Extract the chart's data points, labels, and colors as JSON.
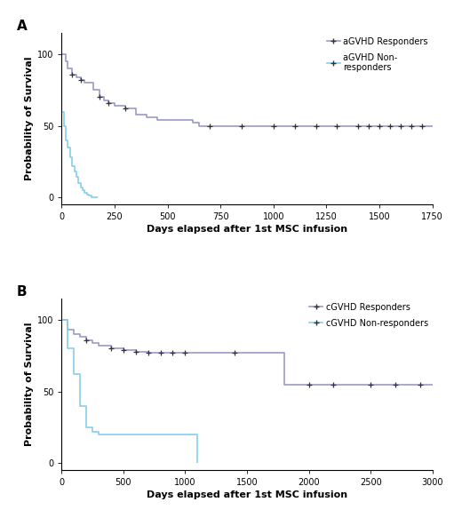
{
  "panel_A": {
    "title_label": "A",
    "xlabel": "Days elapsed after 1st MSC infusion",
    "ylabel": "Probability of Survival",
    "xlim": [
      0,
      1750
    ],
    "ylim": [
      -5,
      115
    ],
    "xticks": [
      0,
      250,
      500,
      750,
      1000,
      1250,
      1500,
      1750
    ],
    "yticks": [
      0,
      50,
      100
    ],
    "responders": {
      "x": [
        0,
        20,
        30,
        50,
        70,
        90,
        110,
        150,
        180,
        200,
        220,
        250,
        300,
        350,
        400,
        450,
        620,
        650,
        700,
        750,
        800,
        900,
        1000,
        1050,
        1100,
        1150,
        1200,
        1250,
        1300,
        1350,
        1400,
        1450,
        1500,
        1550,
        1600,
        1650,
        1700,
        1750
      ],
      "y": [
        100,
        95,
        90,
        86,
        84,
        82,
        80,
        75,
        70,
        68,
        66,
        64,
        62,
        58,
        56,
        54,
        52,
        50,
        50,
        50,
        50,
        50,
        50,
        50,
        50,
        50,
        50,
        50,
        50,
        50,
        50,
        50,
        50,
        50,
        50,
        50,
        50,
        50
      ],
      "censors_x": [
        50,
        90,
        180,
        220,
        300,
        700,
        850,
        1000,
        1100,
        1200,
        1300,
        1400,
        1450,
        1500,
        1550,
        1600,
        1650,
        1700
      ],
      "censors_y": [
        86,
        82,
        70,
        66,
        62,
        50,
        50,
        50,
        50,
        50,
        50,
        50,
        50,
        50,
        50,
        50,
        50,
        50
      ],
      "color": "#9b9bc8",
      "label": "aGVHD Responders"
    },
    "nonresponders": {
      "x": [
        0,
        10,
        20,
        30,
        40,
        50,
        60,
        70,
        80,
        90,
        100,
        110,
        120,
        130,
        140,
        150,
        160,
        170
      ],
      "y": [
        60,
        50,
        40,
        35,
        28,
        22,
        18,
        14,
        10,
        7,
        5,
        3,
        2,
        1,
        0,
        0,
        0,
        0
      ],
      "censors_x": [],
      "censors_y": [],
      "color": "#87CEEB",
      "label": "aGVHD Non-\nresponders"
    }
  },
  "panel_B": {
    "title_label": "B",
    "xlabel": "Days elapsed after 1st MSC infusion",
    "ylabel": "Probability of Survival",
    "xlim": [
      0,
      3000
    ],
    "ylim": [
      -5,
      115
    ],
    "xticks": [
      0,
      500,
      1000,
      1500,
      2000,
      2500,
      3000
    ],
    "yticks": [
      0,
      50,
      100
    ],
    "responders": {
      "x": [
        0,
        50,
        100,
        150,
        200,
        250,
        300,
        400,
        500,
        600,
        700,
        800,
        900,
        1000,
        1200,
        1400,
        1700,
        1800,
        1900,
        2000,
        2100,
        2200,
        2300,
        2400,
        2500,
        2600,
        2700,
        2800,
        2900,
        3000
      ],
      "y": [
        100,
        93,
        90,
        88,
        86,
        84,
        82,
        80,
        79,
        78,
        77,
        77,
        77,
        77,
        77,
        77,
        77,
        55,
        55,
        55,
        55,
        55,
        55,
        55,
        55,
        55,
        55,
        55,
        55,
        55
      ],
      "censors_x": [
        200,
        400,
        500,
        600,
        700,
        800,
        900,
        1000,
        1400,
        2000,
        2200,
        2500,
        2700,
        2900
      ],
      "censors_y": [
        86,
        80,
        79,
        78,
        77,
        77,
        77,
        77,
        77,
        55,
        55,
        55,
        55,
        55
      ],
      "color": "#9b9bc8",
      "label": "cGVHD Responders"
    },
    "nonresponders": {
      "x": [
        0,
        50,
        100,
        150,
        200,
        250,
        300,
        400,
        500,
        600,
        700,
        800,
        900,
        1000,
        1100
      ],
      "y": [
        100,
        80,
        62,
        40,
        25,
        22,
        20,
        20,
        20,
        20,
        20,
        20,
        20,
        20,
        0
      ],
      "censors_x": [],
      "censors_y": [],
      "color": "#87CEEB",
      "label": "cGVHD Non-responders"
    }
  },
  "background_color": "#ffffff",
  "label_fontsize": 8,
  "tick_fontsize": 7,
  "legend_fontsize": 7
}
